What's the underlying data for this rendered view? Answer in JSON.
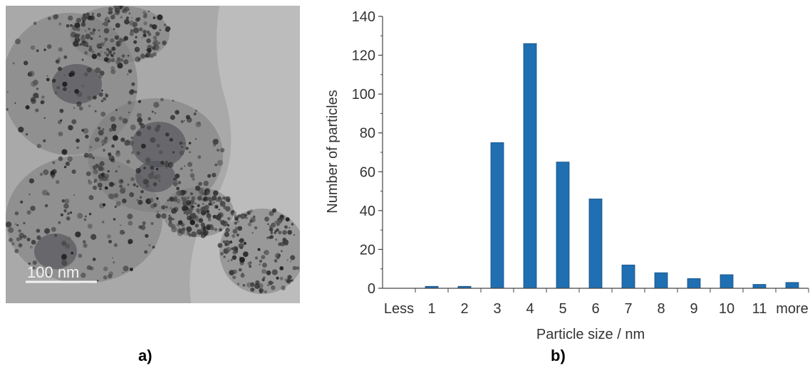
{
  "panels": {
    "a_label": "a)",
    "b_label": "b)"
  },
  "tem_image": {
    "scale_bar_label": "100  nm",
    "colors": {
      "background": "#a9a9a9",
      "film": "#bcbcbc",
      "particles": "#3a3a3a",
      "scale_bar": "#f2f2f2"
    }
  },
  "chart_data": {
    "type": "bar",
    "categories": [
      "Less",
      "1",
      "2",
      "3",
      "4",
      "5",
      "6",
      "7",
      "8",
      "9",
      "10",
      "11",
      "more"
    ],
    "values": [
      0,
      1,
      1,
      75,
      126,
      65,
      46,
      12,
      8,
      5,
      7,
      2,
      3
    ],
    "xlabel": "Particle size / nm",
    "ylabel": "Number of particles",
    "ylim": [
      0,
      140
    ],
    "yticks": [
      0,
      20,
      40,
      60,
      80,
      100,
      120,
      140
    ],
    "bar_color": "#1f6fb2",
    "grid": false,
    "legend": "none"
  }
}
